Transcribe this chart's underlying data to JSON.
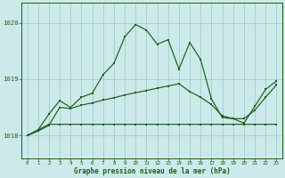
{
  "title": "Graphe pression niveau de la mer (hPa)",
  "background_color": "#cde9e9",
  "plot_bg_color": "#cde9e9",
  "grid_color": "#9fcfcf",
  "line_color": "#1a5e1a",
  "xlim": [
    -0.5,
    23.5
  ],
  "ylim": [
    1017.6,
    1020.35
  ],
  "yticks": [
    1018,
    1019,
    1020
  ],
  "xticks": [
    0,
    1,
    2,
    3,
    4,
    5,
    6,
    7,
    8,
    9,
    10,
    11,
    12,
    13,
    14,
    15,
    16,
    17,
    18,
    19,
    20,
    21,
    22,
    23
  ],
  "hours": [
    0,
    1,
    2,
    3,
    4,
    5,
    6,
    7,
    8,
    9,
    10,
    11,
    12,
    13,
    14,
    15,
    16,
    17,
    18,
    19,
    20,
    21,
    22,
    23
  ],
  "line_flat": [
    1018.0,
    1018.1,
    1018.2,
    1018.2,
    1018.2,
    1018.2,
    1018.2,
    1018.2,
    1018.2,
    1018.2,
    1018.2,
    1018.2,
    1018.2,
    1018.2,
    1018.2,
    1018.2,
    1018.2,
    1018.2,
    1018.2,
    1018.2,
    1018.2,
    1018.2,
    1018.2,
    1018.2
  ],
  "line_trend": [
    1018.0,
    1018.08,
    1018.18,
    1018.5,
    1018.48,
    1018.54,
    1018.58,
    1018.63,
    1018.67,
    1018.72,
    1018.76,
    1018.8,
    1018.84,
    1018.88,
    1018.92,
    1018.78,
    1018.68,
    1018.55,
    1018.35,
    1018.3,
    1018.3,
    1018.45,
    1018.68,
    1018.9
  ],
  "line_jagged": [
    1018.0,
    1018.1,
    1018.38,
    1018.62,
    1018.5,
    1018.68,
    1018.75,
    1019.08,
    1019.28,
    1019.75,
    1019.97,
    1019.87,
    1019.62,
    1019.7,
    1019.18,
    1019.65,
    1019.35,
    1018.65,
    1018.32,
    1018.3,
    1018.22,
    1018.52,
    1018.82,
    1018.97
  ]
}
